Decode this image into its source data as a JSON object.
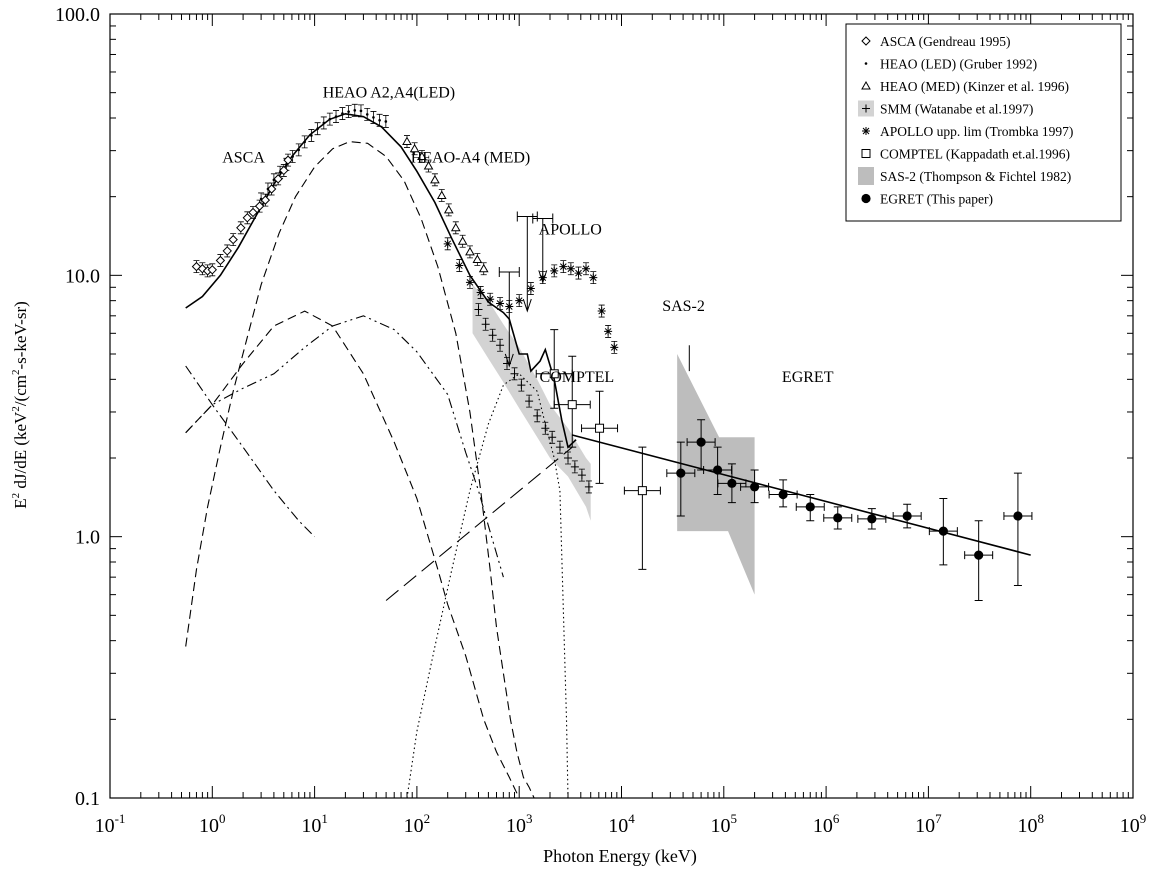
{
  "chart_data": {
    "type": "scatter",
    "title": "",
    "xlabel": "Photon Energy (keV)",
    "ylabel_parts": [
      "E",
      "2",
      " dJ/dE (keV",
      "2",
      "/(cm",
      "2",
      "-s-keV-sr)"
    ],
    "xscale": "log",
    "yscale": "log",
    "xlim": [
      0.1,
      1000000000
    ],
    "ylim": [
      0.1,
      100
    ],
    "grid": false,
    "legend_position": "top-right",
    "x_ticks": [
      {
        "value": 0.1,
        "base": "10",
        "exp": "-1"
      },
      {
        "value": 1,
        "base": "10",
        "exp": "0"
      },
      {
        "value": 10,
        "base": "10",
        "exp": "1"
      },
      {
        "value": 100,
        "base": "10",
        "exp": "2"
      },
      {
        "value": 1000,
        "base": "10",
        "exp": "3"
      },
      {
        "value": 10000,
        "base": "10",
        "exp": "4"
      },
      {
        "value": 100000,
        "base": "10",
        "exp": "5"
      },
      {
        "value": 1000000,
        "base": "10",
        "exp": "6"
      },
      {
        "value": 10000000,
        "base": "10",
        "exp": "7"
      },
      {
        "value": 100000000,
        "base": "10",
        "exp": "8"
      },
      {
        "value": 1000000000,
        "base": "10",
        "exp": "9"
      }
    ],
    "y_ticks": [
      {
        "value": 0.1,
        "label": "0.1"
      },
      {
        "value": 1,
        "label": "1.0"
      },
      {
        "value": 10,
        "label": "10.0"
      },
      {
        "value": 100,
        "label": "100.0"
      }
    ],
    "legend": [
      {
        "marker": "diamond",
        "label": "ASCA (Gendreau 1995)"
      },
      {
        "marker": "dot",
        "label": "HEAO (LED) (Gruber 1992)"
      },
      {
        "marker": "triangle",
        "label": "HEAO (MED) (Kinzer et al. 1996)"
      },
      {
        "marker": "plus-band",
        "label": "SMM (Watanabe et al.1997)"
      },
      {
        "marker": "asterisk",
        "label": "APOLLO upp. lim (Trombka 1997)"
      },
      {
        "marker": "square",
        "label": "COMPTEL (Kappadath et.al.1996)"
      },
      {
        "marker": "gray-box",
        "label": "SAS-2 (Thompson & Fichtel 1982)"
      },
      {
        "marker": "filled-circle",
        "label": "EGRET (This paper)"
      }
    ],
    "annotations": [
      {
        "text": "HEAO A2,A4(LED)",
        "x": 12,
        "y": 48
      },
      {
        "text": "ASCA",
        "x": 1.25,
        "y": 27
      },
      {
        "text": "HEAO-A4 (MED)",
        "x": 87,
        "y": 27
      },
      {
        "text": "APOLLO",
        "x": 1550,
        "y": 14.3
      },
      {
        "text": "COMPTEL",
        "x": 1580,
        "y": 3.9
      },
      {
        "text": "SAS-2",
        "x": 25000,
        "y": 7.3
      },
      {
        "text": "EGRET",
        "x": 370000,
        "y": 3.9
      }
    ],
    "series": [
      {
        "name": "ASCA (Gendreau 1995)",
        "marker": "diamond",
        "x": [
          0.7,
          0.8,
          0.9,
          1.0,
          1.2,
          1.4,
          1.6,
          1.9,
          2.2,
          2.5,
          2.9,
          3.3,
          3.8,
          4.4,
          5.0,
          5.5
        ],
        "y": [
          10.8,
          10.6,
          10.4,
          10.5,
          11.4,
          12.4,
          13.7,
          15.2,
          16.6,
          17.4,
          18.4,
          19.4,
          21.4,
          23.4,
          25.2,
          27.6
        ]
      },
      {
        "name": "HEAO (LED) (Gruber 1992)",
        "marker": "dot",
        "x": [
          3,
          3.5,
          4,
          4.6,
          5.3,
          6.1,
          7,
          8,
          9.3,
          10.7,
          12.3,
          14.1,
          16.2,
          18.7,
          21.5,
          24.7,
          28.4,
          32.7,
          37.6,
          43.2,
          49.7
        ],
        "y": [
          19.6,
          21.4,
          23.2,
          24.8,
          26.6,
          28.5,
          30.2,
          32.4,
          34.3,
          36.4,
          38.3,
          39.6,
          40.5,
          41.6,
          42.3,
          42.8,
          42.6,
          41.3,
          40.2,
          39.2,
          38.8
        ]
      },
      {
        "name": "HEAO (MED) (Kinzer et al. 1996)",
        "marker": "triangle",
        "x": [
          80,
          95,
          112,
          130,
          150,
          175,
          205,
          240,
          280,
          330,
          390,
          450
        ],
        "y": [
          32.5,
          30.5,
          28.5,
          26.2,
          23.2,
          20.2,
          17.8,
          15.2,
          13.5,
          12.3,
          11.5,
          10.6
        ]
      },
      {
        "name": "SMM (Watanabe et al.1997)",
        "marker": "plus",
        "x": [
          400,
          470,
          550,
          650,
          760,
          900,
          1050,
          1250,
          1500,
          1800,
          2100,
          2500,
          3000,
          3500,
          4100,
          4800
        ],
        "y": [
          7.4,
          6.5,
          5.9,
          5.4,
          4.6,
          4.2,
          3.8,
          3.3,
          2.9,
          2.6,
          2.4,
          2.2,
          2.0,
          1.85,
          1.72,
          1.55
        ]
      },
      {
        "name": "APOLLO upp. lim (Trombka 1997)",
        "marker": "asterisk",
        "x": [
          200,
          260,
          330,
          420,
          520,
          650,
          800,
          1000,
          1300,
          1700,
          2200,
          2700,
          3200,
          3800,
          4500,
          5300,
          6400,
          7400,
          8500
        ],
        "y": [
          13.2,
          10.9,
          9.4,
          8.6,
          8.1,
          7.8,
          7.6,
          8.0,
          8.9,
          9.8,
          10.4,
          10.8,
          10.6,
          10.2,
          10.6,
          9.8,
          7.3,
          6.1,
          5.3
        ]
      },
      {
        "name": "COMPTEL (Kappadath et.al.1996)",
        "marker": "square",
        "x": [
          2200,
          3300,
          6100,
          16000
        ],
        "y": [
          4.2,
          3.2,
          2.6,
          1.5
        ],
        "ylo": [
          3.1,
          2.2,
          1.6,
          0.75
        ],
        "yhi": [
          6.2,
          4.9,
          3.6,
          2.2
        ]
      },
      {
        "name": "EGRET (This paper)",
        "marker": "filled-circle",
        "x": [
          38000,
          60000,
          87000,
          120000,
          200000,
          380000,
          700000,
          1300000,
          2800000,
          6200000,
          14000000,
          31000000,
          75000000
        ],
        "y": [
          1.75,
          2.3,
          1.8,
          1.6,
          1.55,
          1.45,
          1.3,
          1.18,
          1.17,
          1.2,
          1.05,
          0.85,
          1.2
        ],
        "ylo": [
          1.2,
          1.8,
          1.45,
          1.35,
          1.35,
          1.3,
          1.15,
          1.07,
          1.07,
          1.08,
          0.78,
          0.57,
          0.65
        ],
        "yhi": [
          2.3,
          2.8,
          2.2,
          1.9,
          1.8,
          1.65,
          1.45,
          1.3,
          1.28,
          1.33,
          1.4,
          1.15,
          1.75
        ]
      },
      {
        "name": "APOLLO upper limits",
        "marker": "upper-limit",
        "x": [
          800,
          1200,
          1700
        ],
        "y": [
          10.3,
          16.8,
          16.5
        ],
        "to": [
          4.5,
          7.3,
          9.4
        ]
      },
      {
        "name": "Total model",
        "marker": "none",
        "line": "solid",
        "x": [
          0.55,
          0.8,
          1.2,
          1.8,
          2.7,
          4.0,
          6.0,
          9.0,
          14,
          20,
          30,
          45,
          70,
          100,
          150,
          220,
          330,
          500,
          700,
          800,
          1000,
          1200,
          1300,
          1600,
          1800,
          2200,
          2600,
          3000,
          3600
        ],
        "y": [
          7.5,
          8.3,
          10.0,
          12.8,
          17.0,
          22.3,
          28.5,
          34.5,
          39.5,
          41.5,
          40.5,
          37.0,
          31.0,
          25.0,
          19.0,
          13.8,
          10.0,
          7.9,
          7.2,
          6.8,
          5.0,
          5.0,
          4.3,
          4.7,
          5.2,
          4.0,
          2.8,
          2.2,
          2.35
        ]
      },
      {
        "name": "EGRET power-law fit",
        "marker": "none",
        "line": "solid",
        "x": [
          3300,
          100000000
        ],
        "y": [
          2.45,
          0.85
        ]
      },
      {
        "name": "Model component (dashed)",
        "marker": "none",
        "line": "dashed",
        "x": [
          0.55,
          0.7,
          0.9,
          1.2,
          1.6,
          2.2,
          3,
          4.5,
          6.5,
          10,
          15,
          22,
          33,
          50,
          75,
          110,
          160,
          240,
          330,
          420,
          520,
          600,
          700,
          820,
          950,
          1100,
          1250,
          1400,
          1500
        ],
        "y": [
          0.38,
          0.75,
          1.3,
          2.2,
          3.6,
          5.8,
          9.2,
          14.5,
          20,
          26,
          30.5,
          32.5,
          32,
          28.5,
          23,
          16.5,
          10.8,
          6.0,
          3.0,
          1.5,
          0.75,
          0.45,
          0.3,
          0.2,
          0.15,
          0.12,
          0.11,
          0.1,
          0.095
        ]
      },
      {
        "name": "Model component (dashed, rising)",
        "marker": "none",
        "line": "dashed",
        "x": [
          0.55,
          1.0,
          2.0,
          4.0,
          8.0,
          15,
          30,
          60,
          100,
          160,
          200,
          300,
          450,
          600,
          800,
          1000,
          1100
        ],
        "y": [
          2.5,
          3.2,
          4.6,
          6.4,
          7.3,
          6.4,
          4.2,
          2.3,
          1.4,
          0.75,
          0.55,
          0.35,
          0.2,
          0.15,
          0.12,
          0.1,
          0.095
        ]
      },
      {
        "name": "Model component (dash-dot)",
        "marker": "none",
        "line": "dashdot",
        "x": [
          0.55,
          1.0,
          2.0,
          4.0,
          7.0,
          10.0
        ],
        "y": [
          4.5,
          3.2,
          2.2,
          1.5,
          1.15,
          1.0
        ]
      },
      {
        "name": "Model component (dash-dot-dot)",
        "marker": "none",
        "line": "dashdotdot",
        "x": [
          0.55,
          1.0,
          2.0,
          4.0,
          8.0,
          15,
          30,
          60,
          100,
          200,
          300,
          400,
          500,
          700
        ],
        "y": [
          2.5,
          3.2,
          3.7,
          4.2,
          5.3,
          6.4,
          7.0,
          6.2,
          5.1,
          3.5,
          2.1,
          1.5,
          1.1,
          0.7
        ]
      },
      {
        "name": "Model component (dotted)",
        "marker": "none",
        "line": "dotted",
        "x": [
          80,
          100,
          150,
          220,
          330,
          500,
          700,
          1000,
          1500,
          1800,
          2200,
          2500,
          2900,
          3000
        ],
        "y": [
          0.1,
          0.18,
          0.38,
          0.75,
          1.5,
          2.7,
          3.8,
          4.2,
          3.6,
          2.7,
          2.0,
          1.5,
          0.2,
          0.1
        ]
      },
      {
        "name": "Model component (long dash)",
        "marker": "none",
        "line": "longdash",
        "x": [
          50,
          3300
        ],
        "y": [
          0.57,
          2.2
        ]
      }
    ],
    "bands": [
      {
        "name": "SMM (Watanabe et al.1997)",
        "color": "#d3d3d3",
        "x": [
          350,
          500,
          700,
          1000,
          1500,
          2000,
          3000,
          4500,
          5000
        ],
        "lower": [
          6.0,
          4.8,
          3.9,
          3.1,
          2.4,
          2.0,
          1.7,
          1.3,
          1.15
        ],
        "upper": [
          9.2,
          8.0,
          6.5,
          5.3,
          4.0,
          3.2,
          2.6,
          2.0,
          1.9
        ]
      }
    ],
    "polygons": [
      {
        "name": "SAS-2 (Thompson & Fichtel 1982)",
        "color": "#bdbdbd",
        "points": [
          [
            35000,
            5.0
          ],
          [
            90000,
            2.4
          ],
          [
            200000,
            2.4
          ],
          [
            200000,
            0.6
          ],
          [
            110000,
            1.05
          ],
          [
            35000,
            1.05
          ]
        ]
      }
    ]
  }
}
